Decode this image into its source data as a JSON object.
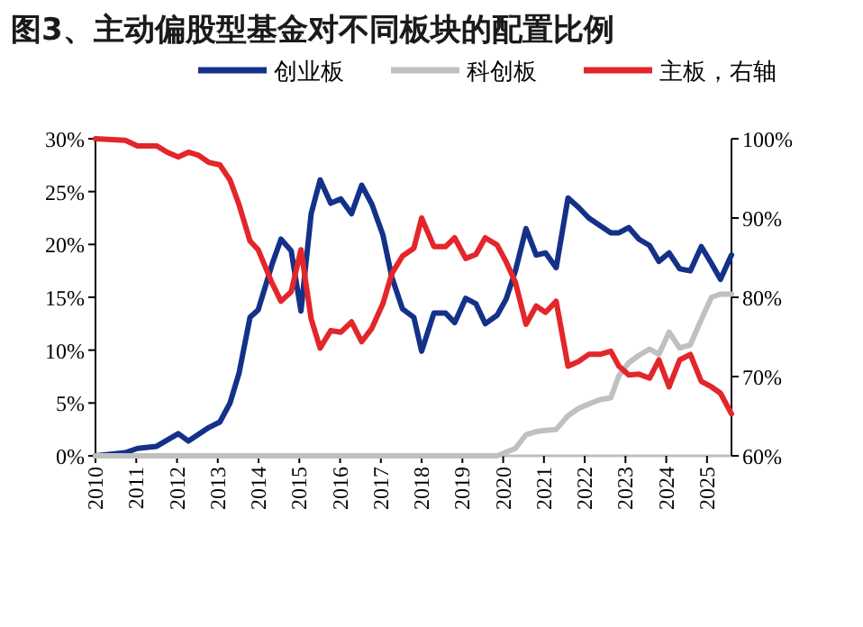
{
  "chart_data": {
    "type": "line",
    "title": "图3、主动偏股型基金对不同板块的配置比例",
    "xlim": [
      2010,
      2025.6
    ],
    "xticks": [
      2010,
      2011,
      2012,
      2013,
      2014,
      2015,
      2016,
      2017,
      2018,
      2019,
      2020,
      2021,
      2022,
      2023,
      2024,
      2025
    ],
    "ylim": [
      0,
      30
    ],
    "yticks": [
      {
        "value": 0,
        "label": "0%"
      },
      {
        "value": 5,
        "label": "5%"
      },
      {
        "value": 10,
        "label": "10%"
      },
      {
        "value": 15,
        "label": "15%"
      },
      {
        "value": 20,
        "label": "20%"
      },
      {
        "value": 25,
        "label": "25%"
      },
      {
        "value": 30,
        "label": "30%"
      }
    ],
    "y2lim": [
      60,
      100
    ],
    "y2ticks": [
      {
        "value": 60,
        "label": "60%"
      },
      {
        "value": 70,
        "label": "70%"
      },
      {
        "value": 80,
        "label": "80%"
      },
      {
        "value": 90,
        "label": "90%"
      },
      {
        "value": 100,
        "label": "100%"
      }
    ],
    "legend": "top",
    "grid": false,
    "series": [
      {
        "name": "创业板",
        "color": "#14318a",
        "x": [
          2010,
          2010.73,
          2011.03,
          2011.5,
          2012.03,
          2012.28,
          2012.79,
          2013.05,
          2013.3,
          2013.52,
          2013.79,
          2013.99,
          2014.33,
          2014.55,
          2014.8,
          2015.04,
          2015.29,
          2015.51,
          2015.77,
          2016.02,
          2016.28,
          2016.53,
          2016.78,
          2017.05,
          2017.27,
          2017.53,
          2017.81,
          2018.0,
          2018.3,
          2018.59,
          2018.81,
          2019.08,
          2019.33,
          2019.56,
          2019.85,
          2020.07,
          2020.3,
          2020.56,
          2020.81,
          2021.04,
          2021.3,
          2021.59,
          2021.85,
          2022.1,
          2022.37,
          2022.64,
          2022.84,
          2023.08,
          2023.33,
          2023.59,
          2023.82,
          2024.07,
          2024.33,
          2024.59,
          2024.86,
          2025.11,
          2025.33,
          2025.6
        ],
        "values": [
          0,
          0.3,
          0.7,
          0.9,
          2.1,
          1.4,
          2.7,
          3.2,
          5,
          7.8,
          13.1,
          13.8,
          18.1,
          20.5,
          19.4,
          13.7,
          22.9,
          26.1,
          23.9,
          24.3,
          22.9,
          25.6,
          23.8,
          20.9,
          16.9,
          13.9,
          13.1,
          9.9,
          13.5,
          13.5,
          12.6,
          14.9,
          14.4,
          12.5,
          13.3,
          14.8,
          17.5,
          21.5,
          19.0,
          19.2,
          17.8,
          24.4,
          23.5,
          22.5,
          21.8,
          21.1,
          21.1,
          21.6,
          20.5,
          19.9,
          18.4,
          19.2,
          17.7,
          17.5,
          19.8,
          18.2,
          16.7,
          19.0
        ]
      },
      {
        "name": "科创板",
        "color": "#c0c0c0",
        "x": [
          2010,
          2019.85,
          2020.3,
          2020.56,
          2020.81,
          2021.04,
          2021.3,
          2021.59,
          2021.85,
          2022.1,
          2022.37,
          2022.64,
          2022.84,
          2023.08,
          2023.33,
          2023.59,
          2023.82,
          2024.07,
          2024.33,
          2024.59,
          2024.86,
          2025.11,
          2025.33,
          2025.6
        ],
        "values": [
          0,
          0,
          0.7,
          2.0,
          2.3,
          2.4,
          2.5,
          3.8,
          4.5,
          4.9,
          5.3,
          5.5,
          7.6,
          8.8,
          9.5,
          10.1,
          9.6,
          11.7,
          10.2,
          10.5,
          12.9,
          15.0,
          15.3,
          15.3
        ]
      },
      {
        "name": "主板，右轴",
        "color": "#e3262a",
        "axis": "y2",
        "x": [
          2010,
          2010.73,
          2011.03,
          2011.5,
          2011.76,
          2012.03,
          2012.28,
          2012.53,
          2012.79,
          2013.05,
          2013.3,
          2013.52,
          2013.79,
          2013.99,
          2014.33,
          2014.55,
          2014.8,
          2015.04,
          2015.29,
          2015.51,
          2015.77,
          2016.02,
          2016.28,
          2016.53,
          2016.78,
          2017.05,
          2017.27,
          2017.53,
          2017.81,
          2018.0,
          2018.3,
          2018.59,
          2018.81,
          2019.08,
          2019.33,
          2019.56,
          2019.85,
          2020.07,
          2020.3,
          2020.56,
          2020.81,
          2021.04,
          2021.3,
          2021.59,
          2021.85,
          2022.1,
          2022.37,
          2022.64,
          2022.84,
          2023.08,
          2023.33,
          2023.59,
          2023.82,
          2024.07,
          2024.33,
          2024.59,
          2024.86,
          2025.11,
          2025.33,
          2025.6
        ],
        "values": [
          100,
          99.8,
          99.1,
          99.1,
          98.3,
          97.7,
          98.3,
          97.9,
          97.0,
          96.7,
          94.8,
          91.7,
          87.1,
          86.0,
          81.8,
          79.5,
          80.7,
          86.0,
          77.3,
          73.6,
          75.8,
          75.6,
          76.9,
          74.4,
          76.1,
          79.2,
          83.0,
          85.2,
          86.2,
          90.0,
          86.4,
          86.4,
          87.5,
          84.9,
          85.4,
          87.5,
          86.6,
          84.5,
          81.9,
          76.6,
          78.9,
          78.1,
          79.5,
          71.3,
          71.9,
          72.8,
          72.8,
          73.2,
          71.3,
          70.2,
          70.3,
          69.8,
          72.1,
          68.7,
          72.1,
          72.8,
          69.4,
          68.7,
          67.9,
          65.3
        ]
      }
    ]
  }
}
